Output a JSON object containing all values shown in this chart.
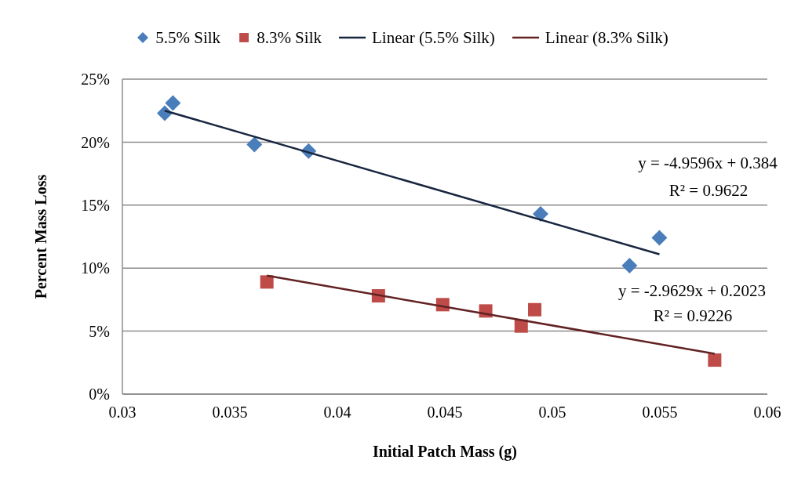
{
  "chart_data": {
    "type": "scatter",
    "xlabel": "Initial Patch Mass (g)",
    "ylabel": "Percent Mass Loss",
    "xlim": [
      0.03,
      0.06
    ],
    "xticks": [
      0.03,
      0.035,
      0.04,
      0.045,
      0.05,
      0.055,
      0.06
    ],
    "ylim": [
      0,
      25
    ],
    "yticks": [
      {
        "value": 0,
        "label": "0%"
      },
      {
        "value": 5,
        "label": "5%"
      },
      {
        "value": 10,
        "label": "10%"
      },
      {
        "value": 15,
        "label": "15%"
      },
      {
        "value": 20,
        "label": "20%"
      },
      {
        "value": 25,
        "label": "25%"
      }
    ],
    "grid": "y",
    "legend": "top",
    "series": [
      {
        "name": "5.5% Silk",
        "marker": "diamond",
        "color": "#4a7ebb",
        "x": [
          0.03197,
          0.03235,
          0.03614,
          0.03866,
          0.04945,
          0.05359,
          0.05498
        ],
        "values": [
          22.3,
          23.1,
          19.8,
          19.3,
          14.3,
          10.2,
          12.4
        ]
      },
      {
        "name": "8.3% Silk",
        "marker": "square",
        "color": "#be4b48",
        "x": [
          0.03672,
          0.04191,
          0.0449,
          0.0469,
          0.04855,
          0.04918,
          0.05755
        ],
        "values": [
          8.9,
          7.8,
          7.1,
          6.6,
          5.4,
          6.7,
          2.7
        ]
      },
      {
        "name": "Linear (5.5% Silk)",
        "type": "line",
        "marker": "none",
        "color": "#17253f",
        "x": [
          0.03197,
          0.05498
        ],
        "values": [
          22.5,
          11.1
        ]
      },
      {
        "name": "Linear (8.3% Silk)",
        "type": "line",
        "marker": "none",
        "color": "#622223",
        "x": [
          0.03672,
          0.05755
        ],
        "values": [
          9.4,
          3.2
        ]
      }
    ],
    "annotations": [
      "y = -4.9596x + 0.384",
      "R² = 0.9622",
      "y = -2.9629x + 0.2023",
      "R² = 0.9226"
    ]
  }
}
